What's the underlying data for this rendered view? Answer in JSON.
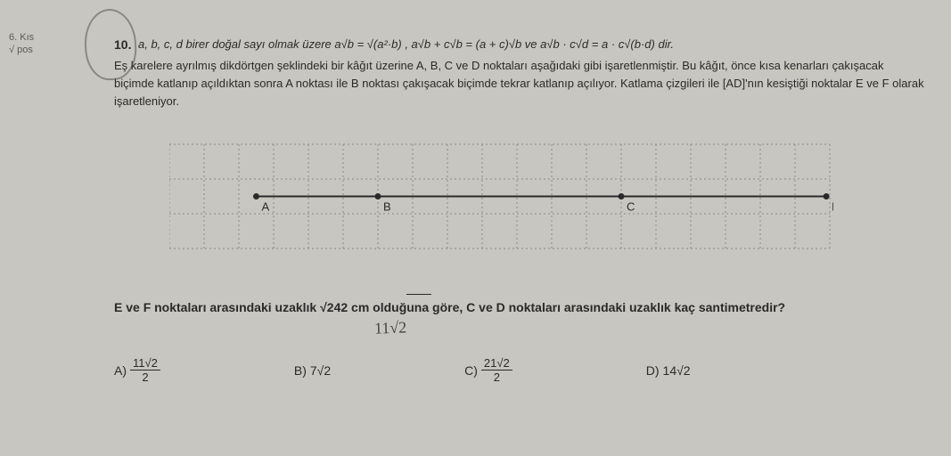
{
  "margin": {
    "line1": "6. Kıs",
    "line2": "√ pos"
  },
  "question_number": "10.",
  "formula_text": "a, b, c, d birer doğal sayı olmak üzere a√b = √(a²·b) , a√b + c√b = (a + c)√b ve a√b · c√d = a · c√(b·d) dir.",
  "body_p1": "Eş karelere ayrılmış dikdörtgen şeklindeki bir kâğıt üzerine A, B, C ve D noktaları aşağıdaki gibi işaretlenmiştir. Bu kâğıt, önce kısa kenarları çakışacak biçimde katlanıp açıldıktan sonra A noktası ile B noktası çakışacak biçimde tekrar katlanıp açılıyor. Katlama çizgileri ile [AD]'nın kesiştiği noktalar E ve F olarak işaretleniyor.",
  "grid": {
    "cols": 19,
    "rows": 3,
    "cell": 39,
    "line_color": "#8a8a84",
    "dash": "2,3",
    "bg": "#c8c6c0",
    "points": [
      {
        "label": "A",
        "col": 2.5,
        "row": 1.5
      },
      {
        "label": "B",
        "col": 6.0,
        "row": 1.5
      },
      {
        "label": "C",
        "col": 13.0,
        "row": 1.5
      },
      {
        "label": "D",
        "col": 18.9,
        "row": 1.5
      }
    ],
    "segment": {
      "from": 2.5,
      "to": 18.9,
      "row": 1.5,
      "color": "#2a2a2a"
    }
  },
  "question_text": "E ve F noktaları arasındaki uzaklık √242 cm olduğuna göre, C ve D noktaları arasındaki uzaklık kaç santimetredir?",
  "handwrite": "11√2",
  "options": {
    "a": {
      "label": "A)",
      "num": "11√2",
      "den": "2"
    },
    "b": {
      "label": "B)",
      "val": "7√2"
    },
    "c": {
      "label": "C)",
      "num": "21√2",
      "den": "2"
    },
    "d": {
      "label": "D)",
      "val": "14√2"
    }
  }
}
